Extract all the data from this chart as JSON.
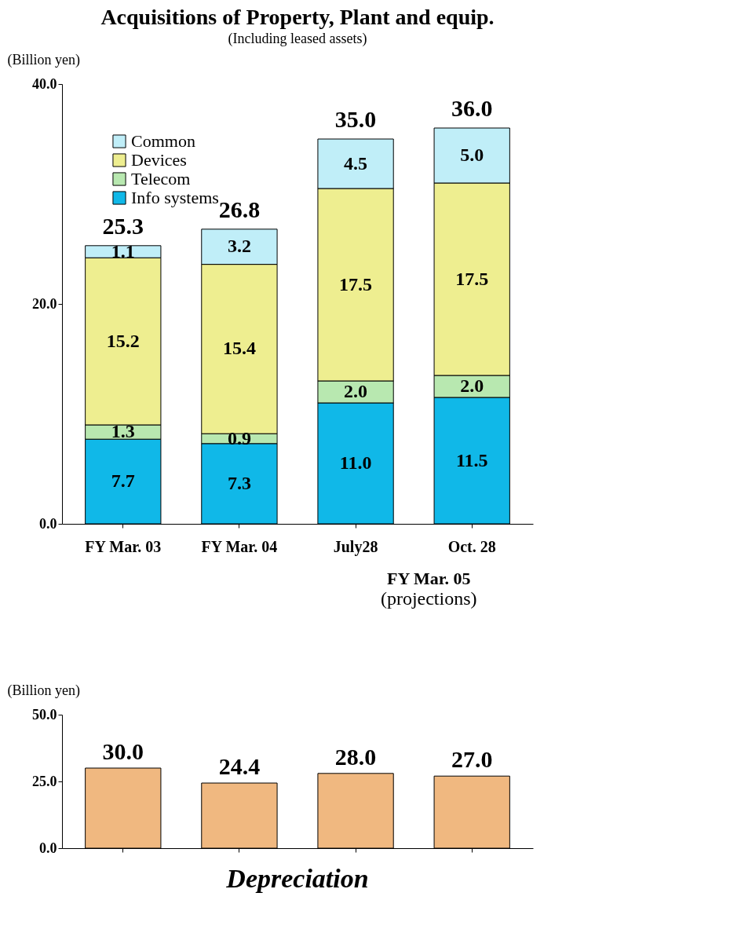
{
  "chart_data": [
    {
      "type": "bar",
      "title": "Acquisitions of Property, Plant and equip.",
      "subtitle": "(Including leased assets)",
      "ylabel": "(Billion yen)",
      "categories": [
        "FY Mar. 03",
        "FY Mar. 04",
        "July28",
        "Oct. 28"
      ],
      "stacked": true,
      "series": [
        {
          "name": "Info systems",
          "color": "#10b8e8",
          "values": [
            7.7,
            7.3,
            11.0,
            11.5
          ],
          "value_labels": [
            "7.7",
            "7.3",
            "11.0",
            "11.5"
          ]
        },
        {
          "name": "Telecom",
          "color": "#b8e8b0",
          "values": [
            1.3,
            0.9,
            2.0,
            2.0
          ],
          "value_labels": [
            "1.3",
            "0.9",
            "2.0",
            "2.0"
          ]
        },
        {
          "name": "Devices",
          "color": "#eeee90",
          "values": [
            15.2,
            15.4,
            17.5,
            17.5
          ],
          "value_labels": [
            "15.2",
            "15.4",
            "17.5",
            "17.5"
          ]
        },
        {
          "name": "Common",
          "color": "#c0eef8",
          "values": [
            1.1,
            3.2,
            4.5,
            5.0
          ],
          "value_labels": [
            "1.1",
            "3.2",
            "4.5",
            "5.0"
          ]
        }
      ],
      "totals": [
        "25.3",
        "26.8",
        "35.0",
        "36.0"
      ],
      "ylim": [
        0,
        40
      ],
      "yticks": [
        {
          "value": 0,
          "label": "0.0"
        },
        {
          "value": 20,
          "label": "20.0"
        },
        {
          "value": 40,
          "label": "40.0"
        }
      ],
      "legend": "top left",
      "annotations": [
        "FY Mar. 05",
        "(projections)"
      ]
    },
    {
      "type": "bar",
      "title": "Depreciation",
      "ylabel": "(Billion yen)",
      "categories": [
        null,
        null,
        null,
        null
      ],
      "values": [
        30.0,
        24.4,
        28.0,
        27.0
      ],
      "value_labels": [
        "30.0",
        "24.4",
        "28.0",
        "27.0"
      ],
      "color": "#f0b880",
      "ylim": [
        0,
        50
      ],
      "yticks": [
        {
          "value": 0,
          "label": "0.0"
        },
        {
          "value": 25,
          "label": "25.0"
        },
        {
          "value": 50,
          "label": "50.0"
        }
      ],
      "tick_labels": "y"
    }
  ]
}
